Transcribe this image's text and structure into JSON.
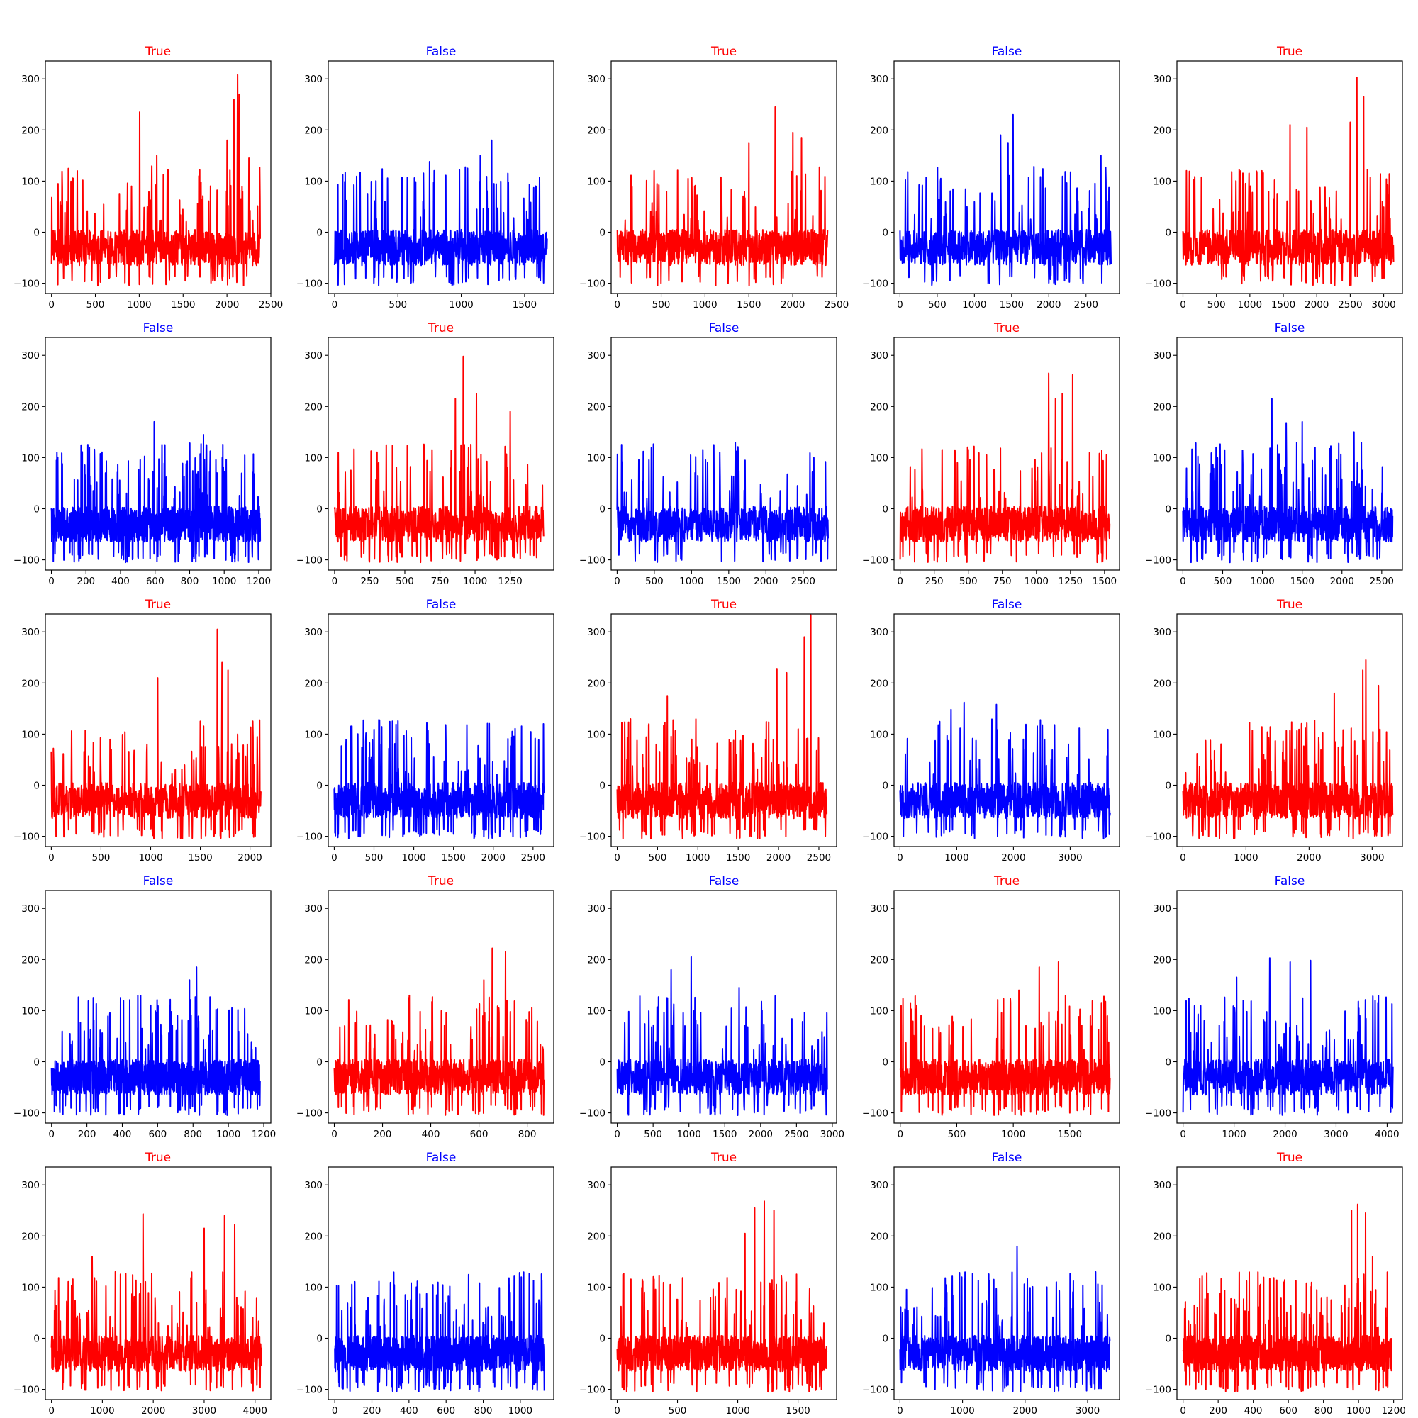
{
  "chart_data": [
    {
      "type": "line",
      "title": "True",
      "color": "#ff0000",
      "n": 2380,
      "ylim": [
        -120,
        335
      ],
      "yticks": [
        -100,
        0,
        100,
        200,
        300
      ],
      "xticks": [
        0,
        500,
        1000,
        1500,
        2000,
        2500
      ],
      "xlim": [
        -70,
        2500
      ],
      "seed": 1,
      "peaks": [
        [
          1005,
          235
        ],
        [
          2080,
          260
        ],
        [
          2120,
          308
        ],
        [
          2140,
          270
        ],
        [
          1200,
          150
        ],
        [
          2000,
          180
        ],
        [
          2250,
          145
        ]
      ]
    },
    {
      "type": "line",
      "title": "False",
      "color": "#0000ff",
      "n": 1680,
      "ylim": [
        -120,
        335
      ],
      "yticks": [
        -100,
        0,
        100,
        200,
        300
      ],
      "xticks": [
        0,
        500,
        1000,
        1500
      ],
      "xlim": [
        -50,
        1730
      ],
      "seed": 2,
      "peaks": [
        [
          1240,
          180
        ],
        [
          750,
          138
        ],
        [
          1150,
          150
        ],
        [
          1050,
          125
        ]
      ]
    },
    {
      "type": "line",
      "title": "True",
      "color": "#ff0000",
      "n": 2400,
      "ylim": [
        -120,
        335
      ],
      "yticks": [
        -100,
        0,
        100,
        200,
        300
      ],
      "xticks": [
        0,
        500,
        1000,
        1500,
        2000,
        2500
      ],
      "xlim": [
        -70,
        2500
      ],
      "seed": 3,
      "peaks": [
        [
          1800,
          245
        ],
        [
          1500,
          175
        ],
        [
          2000,
          195
        ],
        [
          2100,
          185
        ]
      ]
    },
    {
      "type": "line",
      "title": "False",
      "color": "#0000ff",
      "n": 2840,
      "ylim": [
        -120,
        335
      ],
      "yticks": [
        -100,
        0,
        100,
        200,
        300
      ],
      "xticks": [
        0,
        500,
        1000,
        1500,
        2000,
        2500
      ],
      "xlim": [
        -80,
        2950
      ],
      "seed": 4,
      "peaks": [
        [
          1520,
          230
        ],
        [
          1350,
          190
        ],
        [
          1450,
          175
        ],
        [
          2700,
          150
        ]
      ]
    },
    {
      "type": "line",
      "title": "True",
      "color": "#ff0000",
      "n": 3150,
      "ylim": [
        -120,
        335
      ],
      "yticks": [
        -100,
        0,
        100,
        200,
        300
      ],
      "xticks": [
        0,
        500,
        1000,
        1500,
        2000,
        2500,
        3000
      ],
      "xlim": [
        -90,
        3280
      ],
      "seed": 5,
      "peaks": [
        [
          2600,
          303
        ],
        [
          2500,
          215
        ],
        [
          2700,
          265
        ],
        [
          1600,
          210
        ],
        [
          1850,
          205
        ]
      ]
    },
    {
      "type": "line",
      "title": "False",
      "color": "#0000ff",
      "n": 1210,
      "ylim": [
        -120,
        335
      ],
      "yticks": [
        -100,
        0,
        100,
        200,
        300
      ],
      "xticks": [
        0,
        200,
        400,
        600,
        800,
        1000,
        1200
      ],
      "xlim": [
        -35,
        1270
      ],
      "seed": 6,
      "peaks": [
        [
          595,
          170
        ],
        [
          880,
          145
        ],
        [
          220,
          120
        ]
      ]
    },
    {
      "type": "line",
      "title": "True",
      "color": "#ff0000",
      "n": 1490,
      "ylim": [
        -120,
        335
      ],
      "yticks": [
        -100,
        0,
        100,
        200,
        300
      ],
      "xticks": [
        0,
        250,
        500,
        750,
        1000,
        1250
      ],
      "xlim": [
        -45,
        1560
      ],
      "seed": 7,
      "peaks": [
        [
          915,
          298
        ],
        [
          860,
          215
        ],
        [
          1010,
          225
        ],
        [
          1250,
          190
        ]
      ]
    },
    {
      "type": "line",
      "title": "False",
      "color": "#0000ff",
      "n": 2840,
      "ylim": [
        -120,
        335
      ],
      "yticks": [
        -100,
        0,
        100,
        200,
        300
      ],
      "xticks": [
        0,
        500,
        1000,
        1500,
        2000,
        2500
      ],
      "xlim": [
        -80,
        2950
      ],
      "seed": 8,
      "peaks": [
        [
          1300,
          125
        ],
        [
          350,
          112
        ],
        [
          2800,
          92
        ]
      ]
    },
    {
      "type": "line",
      "title": "True",
      "color": "#ff0000",
      "n": 1540,
      "ylim": [
        -120,
        335
      ],
      "yticks": [
        -100,
        0,
        100,
        200,
        300
      ],
      "xticks": [
        0,
        250,
        500,
        750,
        1000,
        1250,
        1500
      ],
      "xlim": [
        -45,
        1610
      ],
      "seed": 9,
      "peaks": [
        [
          1090,
          265
        ],
        [
          1265,
          262
        ],
        [
          1190,
          225
        ],
        [
          1140,
          215
        ]
      ]
    },
    {
      "type": "line",
      "title": "False",
      "color": "#0000ff",
      "n": 2640,
      "ylim": [
        -120,
        335
      ],
      "yticks": [
        -100,
        0,
        100,
        200,
        300
      ],
      "xticks": [
        0,
        500,
        1000,
        1500,
        2000,
        2500
      ],
      "xlim": [
        -75,
        2760
      ],
      "seed": 10,
      "peaks": [
        [
          1120,
          215
        ],
        [
          1300,
          168
        ],
        [
          1500,
          170
        ],
        [
          2150,
          150
        ]
      ]
    },
    {
      "type": "line",
      "title": "True",
      "color": "#ff0000",
      "n": 2110,
      "ylim": [
        -120,
        335
      ],
      "yticks": [
        -100,
        0,
        100,
        200,
        300
      ],
      "xticks": [
        0,
        500,
        1000,
        1500,
        2000
      ],
      "xlim": [
        -60,
        2210
      ],
      "seed": 11,
      "peaks": [
        [
          1670,
          305
        ],
        [
          1720,
          240
        ],
        [
          1780,
          225
        ],
        [
          1070,
          210
        ]
      ]
    },
    {
      "type": "line",
      "title": "False",
      "color": "#0000ff",
      "n": 2640,
      "ylim": [
        -120,
        335
      ],
      "yticks": [
        -100,
        0,
        100,
        200,
        300
      ],
      "xticks": [
        0,
        500,
        1000,
        1500,
        2000,
        2500
      ],
      "xlim": [
        -75,
        2760
      ],
      "seed": 12,
      "peaks": [
        [
          1400,
          118
        ],
        [
          2630,
          120
        ],
        [
          400,
          102
        ]
      ]
    },
    {
      "type": "line",
      "title": "True",
      "color": "#ff0000",
      "n": 2600,
      "ylim": [
        -120,
        335
      ],
      "yticks": [
        -100,
        0,
        100,
        200,
        300
      ],
      "xticks": [
        0,
        500,
        1000,
        1500,
        2000,
        2500
      ],
      "xlim": [
        -75,
        2720
      ],
      "seed": 13,
      "peaks": [
        [
          2400,
          335
        ],
        [
          2320,
          290
        ],
        [
          1980,
          228
        ],
        [
          2100,
          220
        ],
        [
          620,
          175
        ]
      ]
    },
    {
      "type": "line",
      "title": "False",
      "color": "#0000ff",
      "n": 3710,
      "ylim": [
        -120,
        335
      ],
      "yticks": [
        -100,
        0,
        100,
        200,
        300
      ],
      "xticks": [
        0,
        1000,
        2000,
        3000
      ],
      "xlim": [
        -105,
        3870
      ],
      "seed": 14,
      "peaks": [
        [
          1130,
          162
        ],
        [
          1700,
          158
        ],
        [
          900,
          148
        ]
      ]
    },
    {
      "type": "line",
      "title": "True",
      "color": "#ff0000",
      "n": 3330,
      "ylim": [
        -120,
        335
      ],
      "yticks": [
        -100,
        0,
        100,
        200,
        300
      ],
      "xticks": [
        0,
        1000,
        2000,
        3000
      ],
      "xlim": [
        -95,
        3480
      ],
      "seed": 15,
      "peaks": [
        [
          2900,
          245
        ],
        [
          2850,
          225
        ],
        [
          3100,
          195
        ],
        [
          2400,
          180
        ]
      ]
    },
    {
      "type": "line",
      "title": "False",
      "color": "#0000ff",
      "n": 1180,
      "ylim": [
        -120,
        335
      ],
      "yticks": [
        -100,
        0,
        100,
        200,
        300
      ],
      "xticks": [
        0,
        200,
        400,
        600,
        800,
        1000,
        1200
      ],
      "xlim": [
        -35,
        1240
      ],
      "seed": 16,
      "peaks": [
        [
          820,
          185
        ],
        [
          780,
          160
        ],
        [
          1020,
          105
        ]
      ]
    },
    {
      "type": "line",
      "title": "True",
      "color": "#ff0000",
      "n": 870,
      "ylim": [
        -120,
        335
      ],
      "yticks": [
        -100,
        0,
        100,
        200,
        300
      ],
      "xticks": [
        0,
        200,
        400,
        600,
        800
      ],
      "xlim": [
        -25,
        910
      ],
      "seed": 17,
      "peaks": [
        [
          655,
          222
        ],
        [
          710,
          215
        ],
        [
          620,
          160
        ]
      ]
    },
    {
      "type": "line",
      "title": "False",
      "color": "#0000ff",
      "n": 2930,
      "ylim": [
        -120,
        335
      ],
      "yticks": [
        -100,
        0,
        100,
        200,
        300
      ],
      "xticks": [
        0,
        500,
        1000,
        1500,
        2000,
        2500,
        3000
      ],
      "xlim": [
        -85,
        3060
      ],
      "seed": 18,
      "peaks": [
        [
          1030,
          205
        ],
        [
          750,
          180
        ],
        [
          1700,
          145
        ]
      ]
    },
    {
      "type": "line",
      "title": "True",
      "color": "#ff0000",
      "n": 1860,
      "ylim": [
        -120,
        335
      ],
      "yticks": [
        -100,
        0,
        100,
        200,
        300
      ],
      "xticks": [
        0,
        500,
        1000,
        1500
      ],
      "xlim": [
        -55,
        1940
      ],
      "seed": 19,
      "peaks": [
        [
          1400,
          195
        ],
        [
          1230,
          185
        ],
        [
          1050,
          140
        ]
      ]
    },
    {
      "type": "line",
      "title": "False",
      "color": "#0000ff",
      "n": 4120,
      "ylim": [
        -120,
        335
      ],
      "yticks": [
        -100,
        0,
        100,
        200,
        300
      ],
      "xticks": [
        0,
        1000,
        2000,
        3000,
        4000
      ],
      "xlim": [
        -120,
        4300
      ],
      "seed": 20,
      "peaks": [
        [
          1700,
          203
        ],
        [
          2500,
          198
        ],
        [
          2100,
          195
        ],
        [
          1050,
          165
        ]
      ]
    },
    {
      "type": "line",
      "title": "True",
      "color": "#ff0000",
      "n": 4130,
      "ylim": [
        -120,
        335
      ],
      "yticks": [
        -100,
        0,
        100,
        200,
        300
      ],
      "xticks": [
        0,
        1000,
        2000,
        3000,
        4000
      ],
      "xlim": [
        -120,
        4310
      ],
      "seed": 21,
      "peaks": [
        [
          1800,
          243
        ],
        [
          3400,
          240
        ],
        [
          3000,
          215
        ],
        [
          3600,
          222
        ],
        [
          800,
          160
        ]
      ]
    },
    {
      "type": "line",
      "title": "False",
      "color": "#0000ff",
      "n": 1130,
      "ylim": [
        -120,
        335
      ],
      "yticks": [
        -100,
        0,
        100,
        200,
        300
      ],
      "xticks": [
        0,
        200,
        400,
        600,
        800,
        1000
      ],
      "xlim": [
        -35,
        1180
      ],
      "seed": 22,
      "peaks": [
        [
          780,
          108
        ],
        [
          440,
          100
        ],
        [
          1100,
          75
        ]
      ]
    },
    {
      "type": "line",
      "title": "True",
      "color": "#ff0000",
      "n": 1740,
      "ylim": [
        -120,
        335
      ],
      "yticks": [
        -100,
        0,
        100,
        200,
        300
      ],
      "xticks": [
        0,
        500,
        1000,
        1500
      ],
      "xlim": [
        -50,
        1820
      ],
      "seed": 23,
      "peaks": [
        [
          1220,
          268
        ],
        [
          1140,
          255
        ],
        [
          1300,
          250
        ],
        [
          1060,
          205
        ]
      ]
    },
    {
      "type": "line",
      "title": "False",
      "color": "#0000ff",
      "n": 3360,
      "ylim": [
        -120,
        335
      ],
      "yticks": [
        -100,
        0,
        100,
        200,
        300
      ],
      "xticks": [
        0,
        1000,
        2000,
        3000
      ],
      "xlim": [
        -95,
        3510
      ],
      "seed": 24,
      "peaks": [
        [
          1870,
          180
        ],
        [
          1500,
          115
        ],
        [
          2500,
          110
        ]
      ]
    },
    {
      "type": "line",
      "title": "True",
      "color": "#ff0000",
      "n": 1190,
      "ylim": [
        -120,
        335
      ],
      "yticks": [
        -100,
        0,
        100,
        200,
        300
      ],
      "xticks": [
        0,
        200,
        400,
        600,
        800,
        1000,
        1200
      ],
      "xlim": [
        -35,
        1250
      ],
      "seed": 25,
      "peaks": [
        [
          995,
          262
        ],
        [
          960,
          250
        ],
        [
          1040,
          245
        ],
        [
          1080,
          160
        ]
      ]
    }
  ]
}
